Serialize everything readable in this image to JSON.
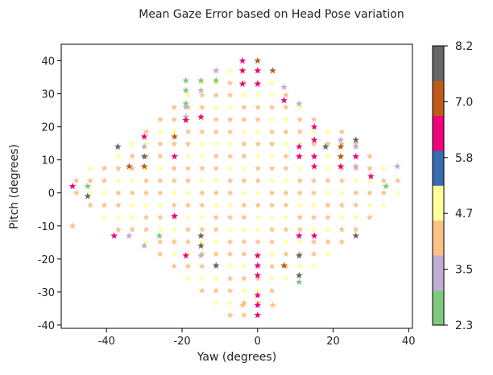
{
  "chart_data": {
    "type": "scatter",
    "title": "Mean Gaze Error based on Head Pose variation",
    "xlabel": "Yaw (degrees)",
    "ylabel": "Pitch (degrees)",
    "xlim": [
      -52,
      41
    ],
    "ylim": [
      -41,
      45
    ],
    "xticks": [
      -40,
      -20,
      0,
      20,
      40
    ],
    "yticks": [
      -40,
      -30,
      -20,
      -10,
      0,
      10,
      20,
      30,
      40
    ],
    "marker": "star",
    "grid": false,
    "colorbar": {
      "ticks": [
        "2.3",
        "3.5",
        "4.7",
        "5.8",
        "7.0",
        "8.2"
      ],
      "min": 2.3,
      "max": 8.2,
      "colors": [
        "#7fc97f",
        "#beaed4",
        "#fdc086",
        "#ffff99",
        "#386cb0",
        "#f0027f",
        "#bf5b17",
        "#666666"
      ]
    },
    "points": [
      {
        "x": -4,
        "y": 40,
        "v": 6.0
      },
      {
        "x": 0,
        "y": 40,
        "v": 7.0
      },
      {
        "x": -4,
        "y": 37,
        "v": 6.0
      },
      {
        "x": 0,
        "y": 37,
        "v": 6.0
      },
      {
        "x": 4,
        "y": 37,
        "v": 7.0
      },
      {
        "x": -11,
        "y": 37,
        "v": 3.5
      },
      {
        "x": -19,
        "y": 34,
        "v": 3.0
      },
      {
        "x": -15,
        "y": 34,
        "v": 3.0
      },
      {
        "x": -11,
        "y": 34,
        "v": 3.0
      },
      {
        "x": -19,
        "y": 31,
        "v": 3.0
      },
      {
        "x": -15,
        "y": 31,
        "v": 3.5
      },
      {
        "x": -4,
        "y": 33,
        "v": 6.0
      },
      {
        "x": 0,
        "y": 33,
        "v": 6.0
      },
      {
        "x": 7,
        "y": 32,
        "v": 3.5
      },
      {
        "x": -19,
        "y": 27,
        "v": 3.0
      },
      {
        "x": 7,
        "y": 28,
        "v": 6.0
      },
      {
        "x": 11,
        "y": 27,
        "v": 3.5
      },
      {
        "x": -19,
        "y": 23,
        "v": 3.5
      },
      {
        "x": -19,
        "y": 26,
        "v": 3.5
      },
      {
        "x": -19,
        "y": 22,
        "v": 6.0
      },
      {
        "x": -15,
        "y": 23,
        "v": 6.0
      },
      {
        "x": 15,
        "y": 20,
        "v": 6.0
      },
      {
        "x": -22,
        "y": 17,
        "v": 7.0
      },
      {
        "x": -30,
        "y": 17,
        "v": 6.0
      },
      {
        "x": 15,
        "y": 16,
        "v": 6.0
      },
      {
        "x": 26,
        "y": 16,
        "v": 8.0
      },
      {
        "x": 22,
        "y": 16,
        "v": 3.5
      },
      {
        "x": -37,
        "y": 14,
        "v": 7.5
      },
      {
        "x": -30,
        "y": 14,
        "v": 3.5
      },
      {
        "x": 11,
        "y": 14,
        "v": 6.0
      },
      {
        "x": 18,
        "y": 14,
        "v": 7.5
      },
      {
        "x": 22,
        "y": 14,
        "v": 7.0
      },
      {
        "x": 26,
        "y": 14,
        "v": 3.5
      },
      {
        "x": -30,
        "y": 11,
        "v": 7.5
      },
      {
        "x": -22,
        "y": 11,
        "v": 6.0
      },
      {
        "x": 11,
        "y": 11,
        "v": 6.0
      },
      {
        "x": 15,
        "y": 11,
        "v": 6.0
      },
      {
        "x": 22,
        "y": 11,
        "v": 7.0
      },
      {
        "x": 26,
        "y": 11,
        "v": 6.0
      },
      {
        "x": -34,
        "y": 8,
        "v": 7.0
      },
      {
        "x": -30,
        "y": 8,
        "v": 7.0
      },
      {
        "x": 15,
        "y": 8,
        "v": 6.0
      },
      {
        "x": 22,
        "y": 8,
        "v": 6.0
      },
      {
        "x": 26,
        "y": 8,
        "v": 3.5
      },
      {
        "x": 37,
        "y": 8,
        "v": 3.5
      },
      {
        "x": 30,
        "y": 5,
        "v": 6.0
      },
      {
        "x": -49,
        "y": 2,
        "v": 6.0
      },
      {
        "x": -45,
        "y": 2,
        "v": 3.0
      },
      {
        "x": 34,
        "y": 2,
        "v": 3.0
      },
      {
        "x": -45,
        "y": -1,
        "v": 8.0
      },
      {
        "x": -22,
        "y": -7,
        "v": 6.0
      },
      {
        "x": -38,
        "y": -13,
        "v": 6.0
      },
      {
        "x": -34,
        "y": -13,
        "v": 3.5
      },
      {
        "x": -26,
        "y": -13,
        "v": 3.0
      },
      {
        "x": -15,
        "y": -13,
        "v": 7.5
      },
      {
        "x": 11,
        "y": -13,
        "v": 6.0
      },
      {
        "x": 15,
        "y": -13,
        "v": 6.0
      },
      {
        "x": 26,
        "y": -13,
        "v": 7.5
      },
      {
        "x": -30,
        "y": -16,
        "v": 3.5
      },
      {
        "x": -15,
        "y": -16,
        "v": 7.5
      },
      {
        "x": -19,
        "y": -19,
        "v": 6.0
      },
      {
        "x": -15,
        "y": -19,
        "v": 3.5
      },
      {
        "x": 0,
        "y": -19,
        "v": 6.0
      },
      {
        "x": 11,
        "y": -19,
        "v": 7.5
      },
      {
        "x": -11,
        "y": -22,
        "v": 7.5
      },
      {
        "x": 0,
        "y": -22,
        "v": 6.0
      },
      {
        "x": 7,
        "y": -22,
        "v": 7.0
      },
      {
        "x": 11,
        "y": -25,
        "v": 7.5
      },
      {
        "x": 0,
        "y": -25,
        "v": 6.0
      },
      {
        "x": 11,
        "y": -27,
        "v": 3.0
      },
      {
        "x": 0,
        "y": -31,
        "v": 6.0
      },
      {
        "x": 0,
        "y": -34,
        "v": 6.0
      },
      {
        "x": 0,
        "y": -37,
        "v": 6.0
      },
      {
        "x": -49,
        "y": -10,
        "v": 4.0
      },
      {
        "x": -4,
        "y": -34,
        "v": 4.0
      },
      {
        "x": 4,
        "y": -34,
        "v": 4.0
      }
    ]
  }
}
